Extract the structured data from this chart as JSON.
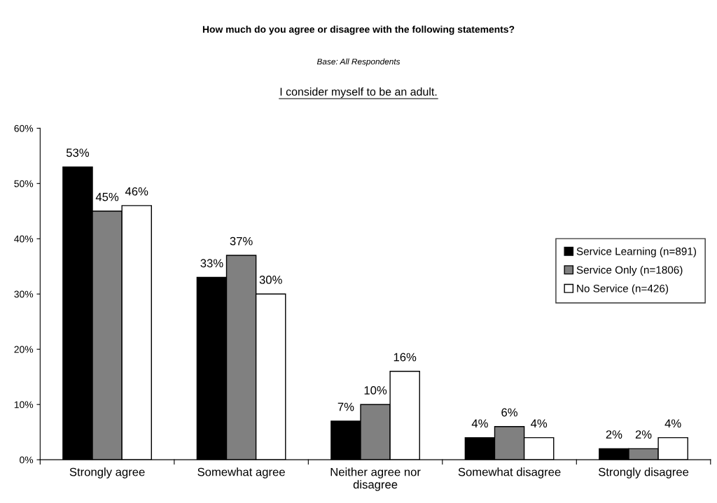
{
  "chart_data": {
    "type": "bar",
    "title": "How much do you agree or disagree with the following statements?",
    "subtitle": "Base: All Respondents",
    "annotations": [
      "I consider myself to be an adult."
    ],
    "categories": [
      "Strongly agree",
      "Somewhat agree",
      "Neither agree nor disagree",
      "Somewhat disagree",
      "Strongly disagree"
    ],
    "series": [
      {
        "name": "Service Learning (n=891)",
        "color": "#000000",
        "values": [
          53,
          33,
          7,
          4,
          2
        ],
        "value_labels": [
          "53%",
          "33%",
          "7%",
          "4%",
          "2%"
        ]
      },
      {
        "name": "Service Only (n=1806)",
        "color": "#808080",
        "values": [
          45,
          37,
          10,
          6,
          2
        ],
        "value_labels": [
          "45%",
          "37%",
          "10%",
          "6%",
          "2%"
        ]
      },
      {
        "name": "No Service (n=426)",
        "color": "#ffffff",
        "values": [
          46,
          30,
          16,
          4,
          4
        ],
        "value_labels": [
          "46%",
          "30%",
          "16%",
          "4%",
          "4%"
        ]
      }
    ],
    "ylim": [
      0,
      60
    ],
    "yticks": [
      {
        "value": 0,
        "label": "0%"
      },
      {
        "value": 10,
        "label": "10%"
      },
      {
        "value": 20,
        "label": "20%"
      },
      {
        "value": 30,
        "label": "30%"
      },
      {
        "value": 40,
        "label": "40%"
      },
      {
        "value": 50,
        "label": "50%"
      },
      {
        "value": 60,
        "label": "60%"
      }
    ],
    "grid": false,
    "legend": "right"
  }
}
